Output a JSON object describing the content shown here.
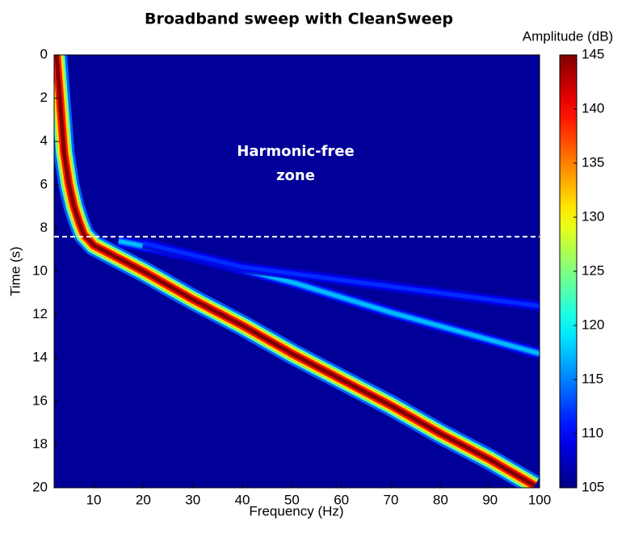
{
  "chart_data": {
    "type": "spectrogram",
    "title": "Broadband sweep with CleanSweep",
    "x_label": "Frequency (Hz)",
    "y_label": "Time (s)",
    "colorbar_label": "Amplitude (dB)",
    "annotation": [
      "Harmonic-free",
      "zone"
    ],
    "hline": 8.4,
    "background": 106,
    "xlim": [
      2,
      100
    ],
    "xticks": [
      10,
      20,
      30,
      40,
      50,
      60,
      70,
      80,
      90,
      100
    ],
    "ylim": [
      0,
      20
    ],
    "y_reversed": true,
    "yticks": [
      0,
      2,
      4,
      6,
      8,
      10,
      12,
      14,
      16,
      18,
      20
    ],
    "clim": [
      105,
      145
    ],
    "cticks": [
      105,
      110,
      115,
      120,
      125,
      130,
      135,
      140,
      145
    ],
    "colormap": "jet",
    "series": [
      {
        "amplitude": 145,
        "x": [
          2.5,
          3,
          3.5,
          4,
          5,
          6,
          7,
          8,
          10,
          20,
          30,
          40,
          50,
          60,
          70,
          80,
          90,
          99
        ],
        "values": [
          0,
          1.5,
          3,
          4.5,
          6,
          7,
          7.7,
          8.3,
          8.8,
          10.0,
          11.3,
          12.5,
          13.8,
          15.0,
          16.2,
          17.5,
          18.7,
          19.9
        ]
      },
      {
        "amplitude": 118,
        "x": [
          15,
          30,
          50,
          70,
          100
        ],
        "values": [
          8.6,
          9.3,
          10.5,
          11.9,
          13.8
        ]
      },
      {
        "amplitude": 112,
        "x": [
          20,
          40,
          60,
          80,
          100
        ],
        "values": [
          8.7,
          9.8,
          10.4,
          11.0,
          11.6
        ]
      }
    ]
  }
}
